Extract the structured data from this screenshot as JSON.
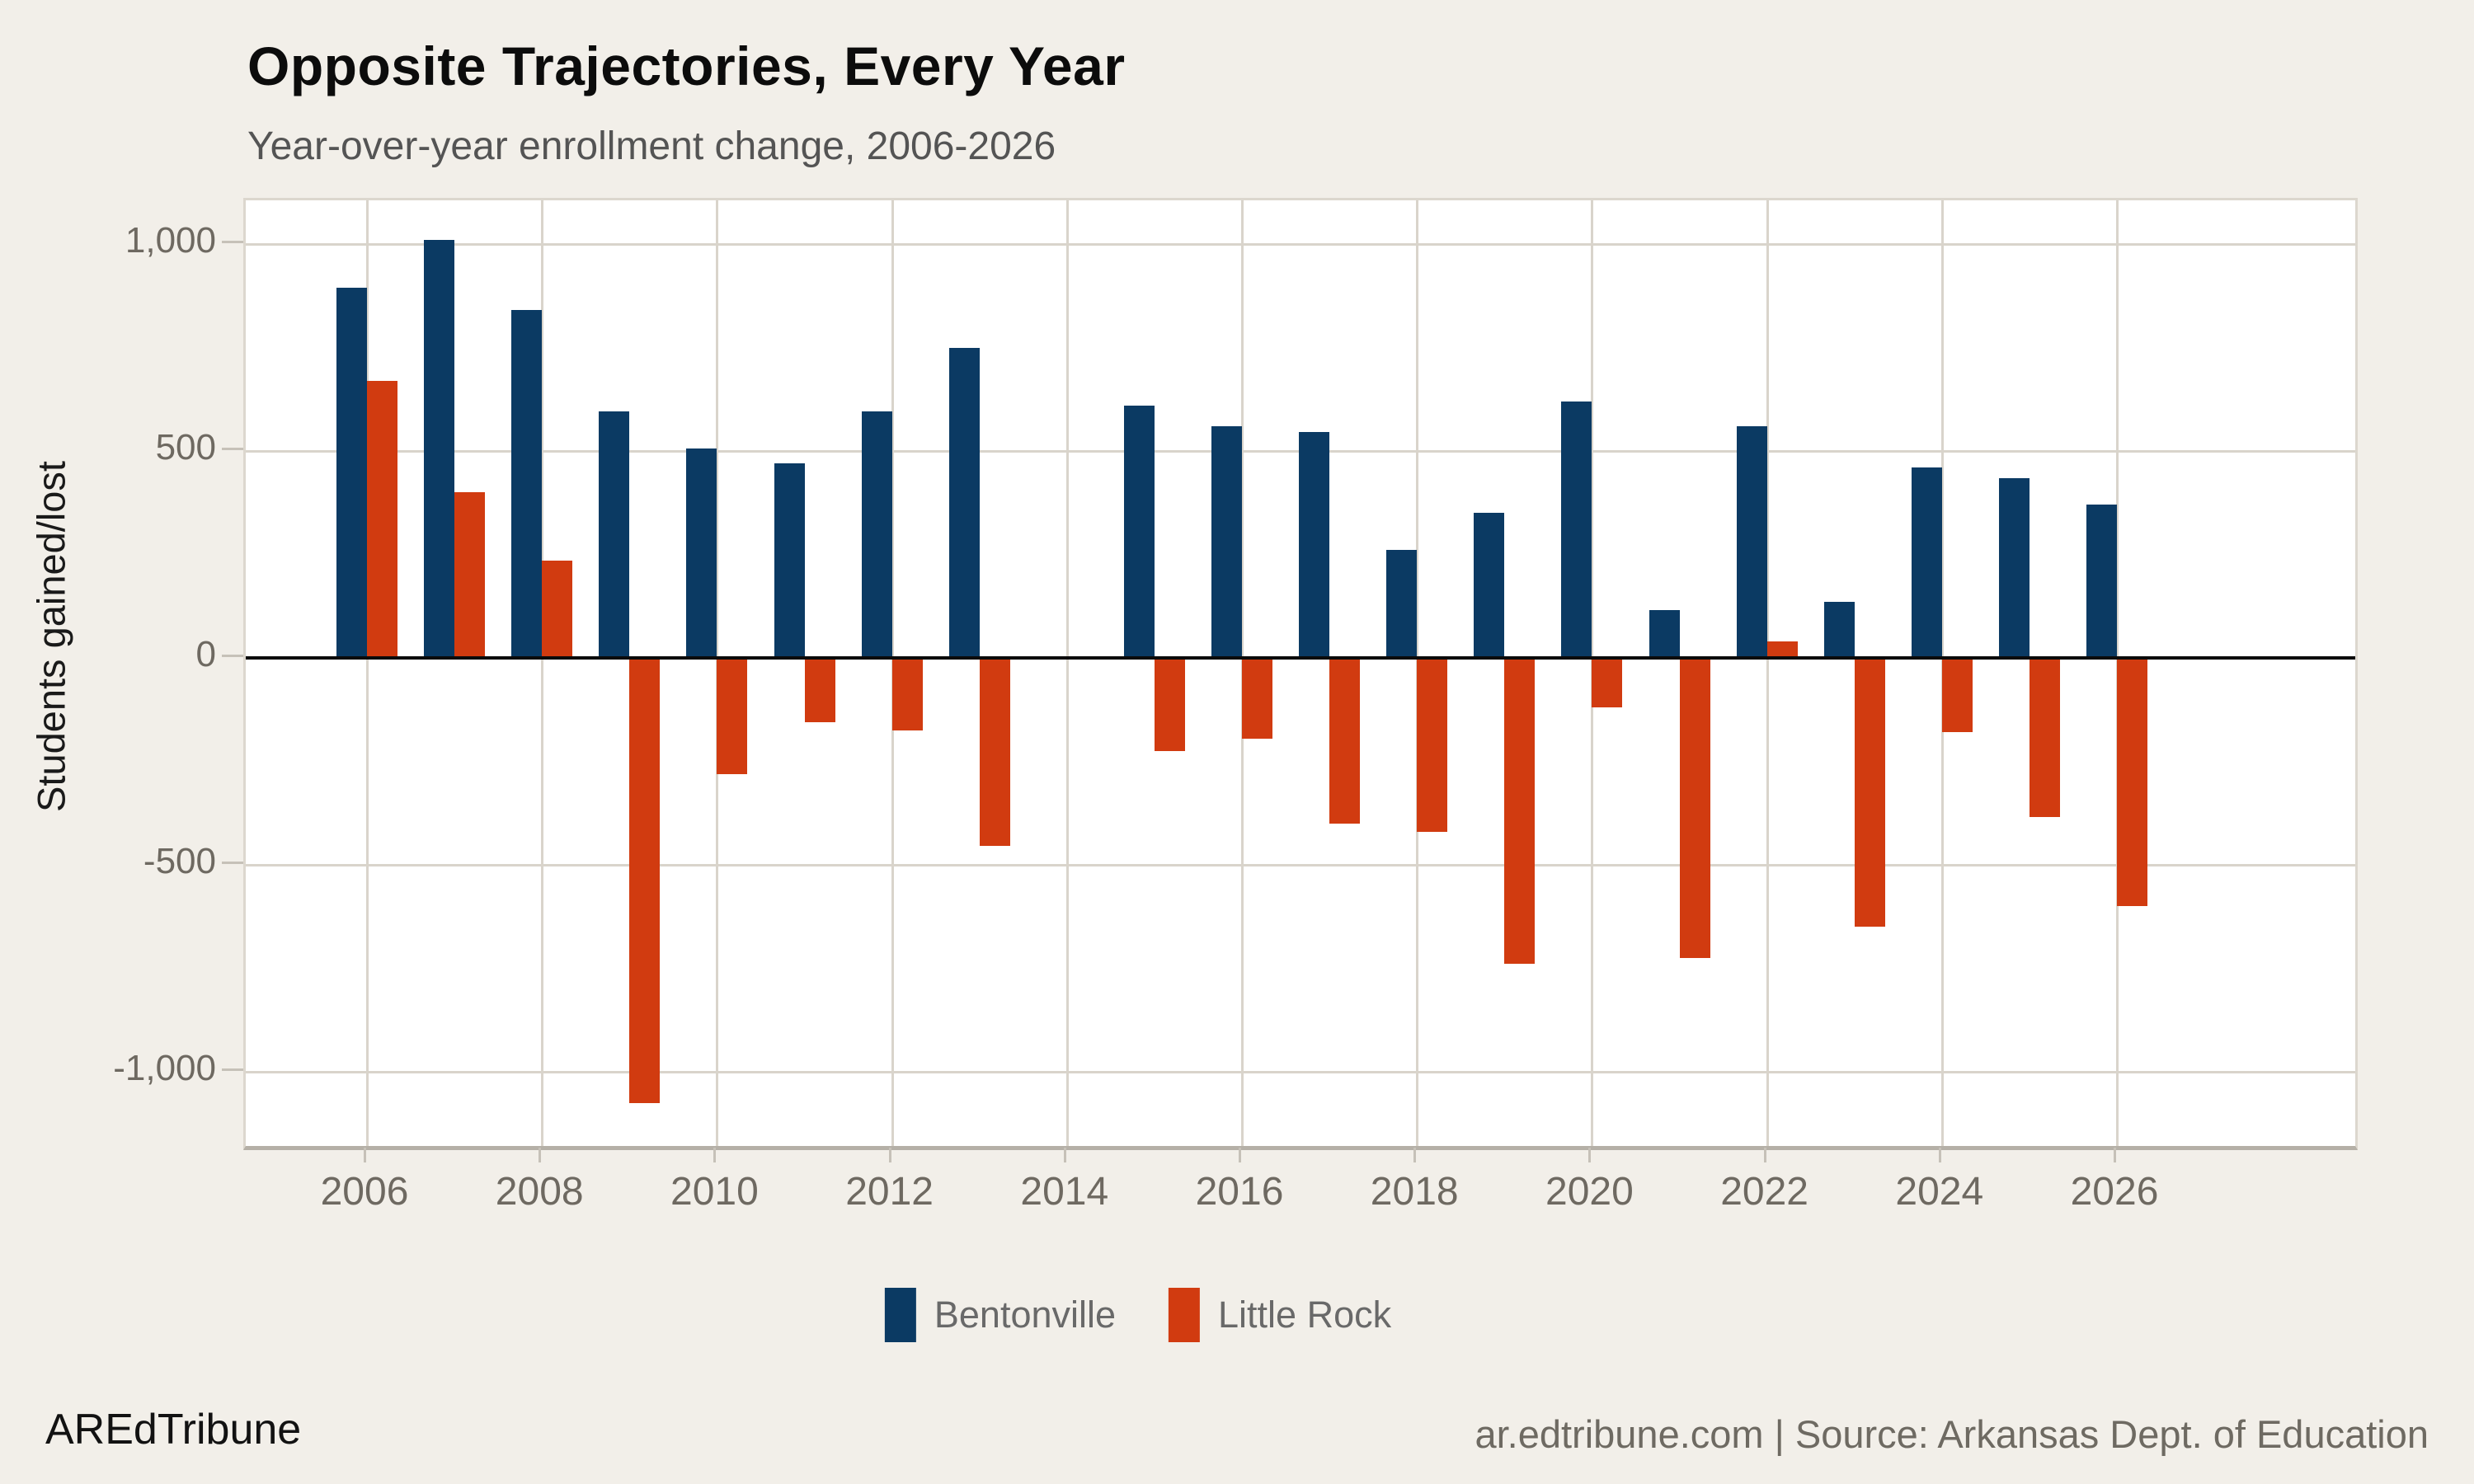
{
  "title": "Opposite Trajectories, Every Year",
  "subtitle": "Year-over-year enrollment change, 2006-2026",
  "footer": {
    "brand": "AREdTribune",
    "source": "ar.edtribune.com | Source: Arkansas Dept. of Education"
  },
  "colors": {
    "bentonville_blue": "#0b3a63",
    "little_rock_orange": "#d13b10",
    "background": "#f2efe9",
    "panel": "#ffffff",
    "gridline": "#d9d4cb",
    "zero_axis": "#0b0b0b",
    "tick_text": "#6e6961"
  },
  "chart_data": {
    "type": "bar",
    "title": "Opposite Trajectories, Every Year",
    "subtitle": "Year-over-year enrollment change, 2006-2026",
    "xlabel": "",
    "ylabel": "Students gained/lost",
    "x": [
      2006,
      2007,
      2008,
      2009,
      2010,
      2011,
      2012,
      2013,
      2014,
      2015,
      2016,
      2017,
      2018,
      2019,
      2020,
      2021,
      2022,
      2023,
      2024,
      2025,
      2026
    ],
    "x_ticks": [
      2006,
      2008,
      2010,
      2012,
      2014,
      2016,
      2018,
      2020,
      2022,
      2024,
      2026
    ],
    "y_ticks": [
      1000,
      500,
      0,
      -500,
      -1000
    ],
    "y_tick_labels": [
      "1,000",
      "500",
      "0",
      "-500",
      "-1,000"
    ],
    "ylim": [
      -1180,
      1110
    ],
    "grid": true,
    "legend_position": "bottom",
    "note": "2014 has no bars for either series",
    "series": [
      {
        "name": "Bentonville",
        "color": "#0b3a63",
        "values": [
          895,
          1010,
          840,
          595,
          505,
          470,
          595,
          750,
          null,
          610,
          560,
          545,
          260,
          350,
          620,
          115,
          560,
          135,
          460,
          435,
          370
        ]
      },
      {
        "name": "Little Rock",
        "color": "#d13b10",
        "values": [
          670,
          400,
          235,
          -1075,
          -280,
          -155,
          -175,
          -455,
          null,
          -225,
          -195,
          -400,
          -420,
          -740,
          -120,
          -725,
          40,
          -650,
          -180,
          -385,
          -600
        ]
      }
    ]
  },
  "legend": {
    "items": [
      {
        "label": "Bentonville"
      },
      {
        "label": "Little Rock"
      }
    ]
  }
}
